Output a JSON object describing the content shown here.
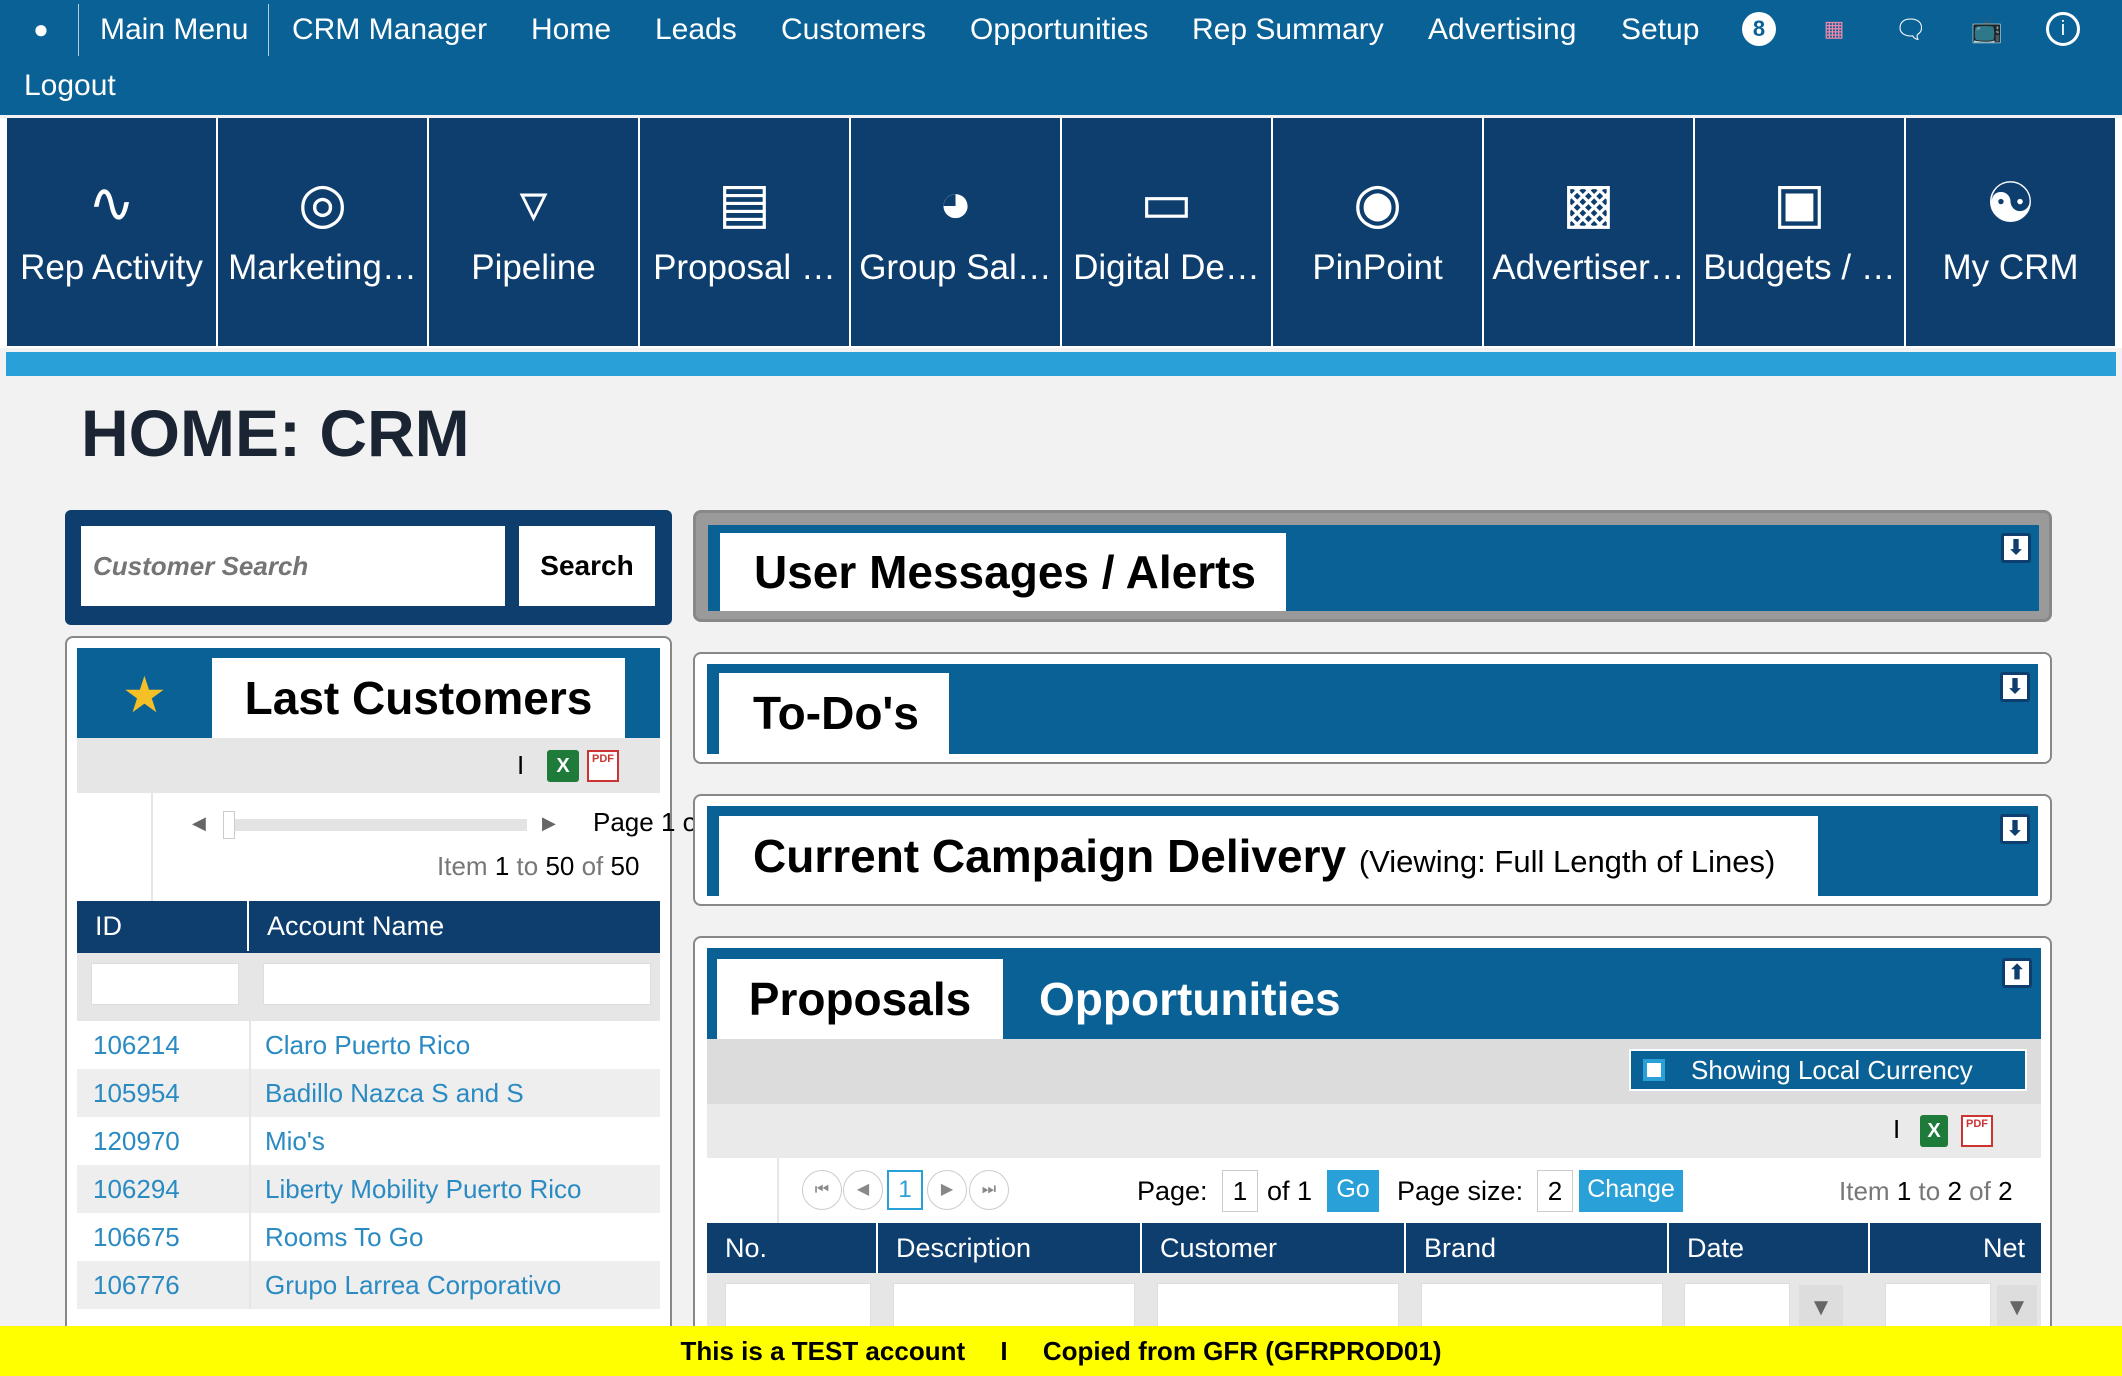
{
  "nav": {
    "main_menu": "Main Menu",
    "items": [
      "CRM Manager",
      "Home",
      "Leads",
      "Customers",
      "Opportunities",
      "Rep Summary",
      "Advertising",
      "Setup"
    ],
    "badge": "8",
    "logout": "Logout"
  },
  "tiles": [
    {
      "label": "Rep Activity",
      "icon": "pulse-icon"
    },
    {
      "label": "Marketing…",
      "icon": "target-arrow-icon"
    },
    {
      "label": "Pipeline",
      "icon": "funnel-icon"
    },
    {
      "label": "Proposal …",
      "icon": "document-sign-icon"
    },
    {
      "label": "Group Sal…",
      "icon": "gauge-icon"
    },
    {
      "label": "Digital De…",
      "icon": "devices-icon"
    },
    {
      "label": "PinPoint",
      "icon": "bullseye-icon"
    },
    {
      "label": "Advertiser…",
      "icon": "podium-icon"
    },
    {
      "label": "Budgets / …",
      "icon": "money-icon"
    },
    {
      "label": "My CRM",
      "icon": "weightlifter-icon"
    }
  ],
  "page_title": "HOME: CRM",
  "search": {
    "placeholder": "Customer Search",
    "button": "Search"
  },
  "last_customers": {
    "title": "Last Customers",
    "separator": "I",
    "page_label": "Page 1 o",
    "item_range": {
      "prefix": "Item",
      "from": "1",
      "to_label": "to",
      "to": "50",
      "of_label": "of",
      "total": "50"
    },
    "columns": [
      "ID",
      "Account Name"
    ],
    "rows": [
      {
        "id": "106214",
        "name": "Claro Puerto Rico"
      },
      {
        "id": "105954",
        "name": "Badillo Nazca S and S"
      },
      {
        "id": "120970",
        "name": "Mio's"
      },
      {
        "id": "106294",
        "name": "Liberty Mobility Puerto Rico"
      },
      {
        "id": "106675",
        "name": "Rooms To Go"
      },
      {
        "id": "106776",
        "name": "Grupo Larrea Corporativo"
      }
    ]
  },
  "panels": {
    "messages": "User Messages / Alerts",
    "todos": "To-Do's",
    "campaign": "Current Campaign Delivery",
    "campaign_sub": "(Viewing: Full Length of Lines)"
  },
  "proposals": {
    "tab_active": "Proposals",
    "tab_other": "Opportunities",
    "currency_toggle": "Showing Local Currency",
    "separator": "I",
    "current_page": "1",
    "page_label": "Page:",
    "page_value": "1",
    "of_pages": "of 1",
    "go": "Go",
    "page_size_label": "Page size:",
    "page_size": "2",
    "change": "Change",
    "item_range": {
      "prefix": "Item",
      "from": "1",
      "to_label": "to",
      "to": "2",
      "of_label": "of",
      "total": "2"
    },
    "columns": [
      "No.",
      "Description",
      "Customer",
      "Brand",
      "Date",
      "Net"
    ]
  },
  "footer": {
    "left": "This is a TEST account",
    "sep": "I",
    "right": "Copied from GFR (GFRPROD01)"
  },
  "colors": {
    "nav": "#0a6196",
    "tile": "#0d3e6e",
    "accent": "#2aa0d8",
    "link": "#2a8ac2",
    "banner": "#ffff00"
  }
}
